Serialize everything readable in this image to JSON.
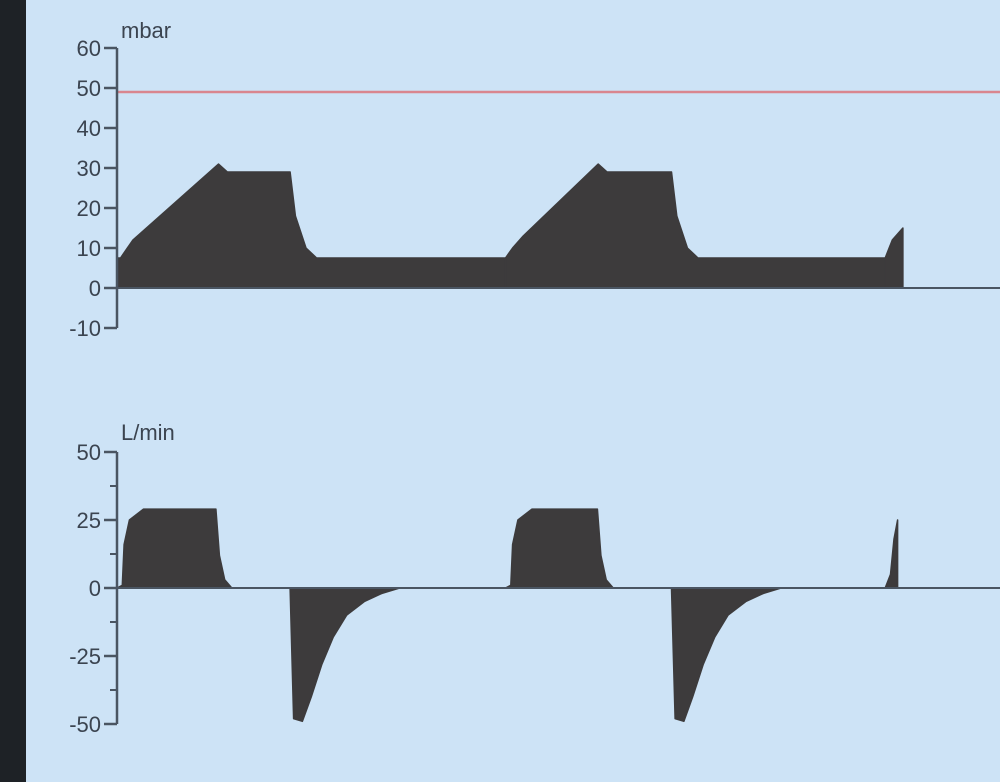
{
  "colors": {
    "page": "#f4f5f7",
    "frame": "#1e2226",
    "panel": "#cde3f6",
    "waveform": "#3d3b3c",
    "axis": "#4a5562",
    "limit_line": "#d9868f",
    "text": "#3b4450"
  },
  "chart_data": [
    {
      "type": "area",
      "unit": "mbar",
      "ylim": [
        -10,
        60
      ],
      "yticks": [
        60,
        50,
        40,
        30,
        20,
        10,
        0,
        -10
      ],
      "ytick_labels": [
        "60",
        "50",
        "40",
        "30",
        "20",
        "10",
        "0",
        "-10"
      ],
      "limit_line": 49,
      "legend": "none",
      "grid": false,
      "x_unit": "time (unlabeled)",
      "xlim": [
        0,
        1.0
      ],
      "breaths": [
        {
          "x": [
            0.0,
            0.004,
            0.018,
            0.115,
            0.125,
            0.196,
            0.202,
            0.214,
            0.226,
            0.238,
            0.44
          ],
          "y": [
            7.5,
            7.5,
            12,
            31,
            29,
            29,
            18,
            10,
            7.5,
            7.5,
            7.5
          ]
        },
        {
          "x": [
            0.44,
            0.448,
            0.46,
            0.545,
            0.555,
            0.628,
            0.634,
            0.646,
            0.658,
            0.67,
            0.87
          ],
          "y": [
            7.5,
            10,
            13,
            31,
            29,
            29,
            18,
            10,
            7.5,
            7.5,
            7.5
          ]
        },
        {
          "x": [
            0.87,
            0.878,
            0.89
          ],
          "y": [
            7.5,
            12,
            15
          ]
        }
      ]
    },
    {
      "type": "area",
      "unit": "L/min",
      "ylim": [
        -50,
        50
      ],
      "yticks": [
        50,
        25,
        0,
        -25,
        -50
      ],
      "ytick_labels": [
        "50",
        "25",
        "0",
        "-25",
        "-50"
      ],
      "legend": "none",
      "grid": false,
      "x_unit": "time (unlabeled)",
      "xlim": [
        0,
        1.0
      ],
      "breaths": [
        {
          "x": [
            0.0,
            0.006,
            0.008,
            0.014,
            0.03,
            0.112,
            0.116,
            0.122,
            0.13
          ],
          "y": [
            0,
            1,
            16,
            25,
            29,
            29,
            12,
            3,
            0
          ]
        },
        {
          "x": [
            0.196,
            0.2,
            0.21,
            0.22,
            0.232,
            0.245,
            0.26,
            0.28,
            0.3,
            0.32
          ],
          "y": [
            0,
            -48,
            -49,
            -40,
            -28,
            -18,
            -10,
            -5,
            -2,
            0
          ]
        },
        {
          "x": [
            0.44,
            0.446,
            0.448,
            0.454,
            0.47,
            0.544,
            0.548,
            0.554,
            0.562
          ],
          "y": [
            0,
            1,
            16,
            25,
            29,
            29,
            12,
            3,
            0
          ]
        },
        {
          "x": [
            0.628,
            0.632,
            0.642,
            0.652,
            0.664,
            0.677,
            0.692,
            0.712,
            0.732,
            0.752
          ],
          "y": [
            0,
            -48,
            -49,
            -40,
            -28,
            -18,
            -10,
            -5,
            -2,
            0
          ]
        },
        {
          "x": [
            0.87,
            0.876,
            0.88,
            0.884
          ],
          "y": [
            0,
            5,
            18,
            25
          ]
        }
      ]
    }
  ]
}
